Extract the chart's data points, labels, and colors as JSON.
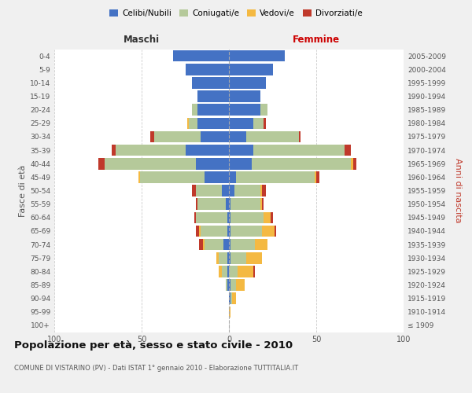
{
  "age_groups": [
    "100+",
    "95-99",
    "90-94",
    "85-89",
    "80-84",
    "75-79",
    "70-74",
    "65-69",
    "60-64",
    "55-59",
    "50-54",
    "45-49",
    "40-44",
    "35-39",
    "30-34",
    "25-29",
    "20-24",
    "15-19",
    "10-14",
    "5-9",
    "0-4"
  ],
  "birth_years": [
    "≤ 1909",
    "1910-1914",
    "1915-1919",
    "1920-1924",
    "1925-1929",
    "1930-1934",
    "1935-1939",
    "1940-1944",
    "1945-1949",
    "1950-1954",
    "1955-1959",
    "1960-1964",
    "1965-1969",
    "1970-1974",
    "1975-1979",
    "1980-1984",
    "1985-1989",
    "1990-1994",
    "1995-1999",
    "2000-2004",
    "2005-2009"
  ],
  "maschi": {
    "celibi": [
      0,
      0,
      0,
      1,
      1,
      1,
      3,
      1,
      1,
      2,
      4,
      14,
      19,
      25,
      16,
      18,
      18,
      18,
      21,
      25,
      32
    ],
    "coniugati": [
      0,
      0,
      0,
      1,
      3,
      5,
      11,
      15,
      18,
      16,
      15,
      37,
      52,
      40,
      27,
      5,
      3,
      0,
      0,
      0,
      0
    ],
    "vedovi": [
      0,
      0,
      0,
      0,
      2,
      1,
      1,
      1,
      0,
      0,
      0,
      1,
      0,
      0,
      0,
      1,
      0,
      0,
      0,
      0,
      0
    ],
    "divorziati": [
      0,
      0,
      0,
      0,
      0,
      0,
      2,
      2,
      1,
      1,
      2,
      0,
      4,
      2,
      2,
      0,
      0,
      0,
      0,
      0,
      0
    ]
  },
  "femmine": {
    "nubili": [
      0,
      0,
      1,
      1,
      0,
      1,
      1,
      1,
      1,
      1,
      3,
      4,
      13,
      14,
      10,
      14,
      18,
      18,
      21,
      25,
      32
    ],
    "coniugate": [
      0,
      0,
      1,
      3,
      5,
      9,
      14,
      18,
      19,
      17,
      15,
      45,
      57,
      52,
      30,
      6,
      4,
      0,
      0,
      0,
      0
    ],
    "vedove": [
      0,
      1,
      2,
      5,
      9,
      9,
      7,
      7,
      4,
      1,
      1,
      1,
      1,
      0,
      0,
      0,
      0,
      0,
      0,
      0,
      0
    ],
    "divorziate": [
      0,
      0,
      0,
      0,
      1,
      0,
      0,
      1,
      1,
      1,
      2,
      2,
      2,
      4,
      1,
      1,
      0,
      0,
      0,
      0,
      0
    ]
  },
  "color_celibi": "#4472c4",
  "color_coniugati": "#b5c99a",
  "color_vedovi": "#f4b942",
  "color_divorziati": "#c0392b",
  "title": "Popolazione per età, sesso e stato civile - 2010",
  "subtitle": "COMUNE DI VISTARINO (PV) - Dati ISTAT 1° gennaio 2010 - Elaborazione TUTTITALIA.IT",
  "xlabel_left": "Maschi",
  "xlabel_right": "Femmine",
  "ylabel_left": "Fasce di età",
  "ylabel_right": "Anni di nascita",
  "xlim": 100,
  "bg_color": "#f0f0f0",
  "plot_bg": "#ffffff",
  "grid_color": "#cccccc"
}
